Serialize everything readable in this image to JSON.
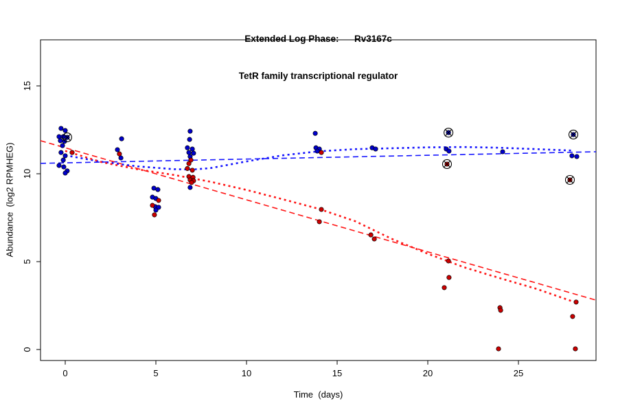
{
  "figure": {
    "title_line1": "Extended Log Phase:      Rv3167c",
    "title_line2": "TetR family transcriptional regulator",
    "xlabel": "Time  (days)",
    "ylabel": "Abundance  (log2 RPMHEG)"
  },
  "chart_data": {
    "type": "scatter",
    "title": "Extended Log Phase: Rv3167c — TetR family transcriptional regulator",
    "xlabel": "Time (days)",
    "ylabel": "Abundance (log2 RPMHEG)",
    "xlim": [
      -1.364,
      29.28
    ],
    "ylim": [
      -0.625,
      17.62
    ],
    "x_ticks": [
      0,
      5,
      10,
      15,
      20,
      25
    ],
    "y_ticks": [
      0,
      5,
      10,
      15
    ],
    "grid": false,
    "legend": "none",
    "colors": {
      "blue_point": "#0000CC",
      "red_point": "#CC0000",
      "blue_line": "#1414FF",
      "red_line": "#FF1414",
      "marker_outline": "#000000"
    },
    "series": [
      {
        "name": "blue_replicates",
        "color": "#0000CC",
        "points": [
          [
            -0.23,
            12.58
          ],
          [
            0.0,
            12.46
          ],
          [
            -0.34,
            12.11
          ],
          [
            -0.11,
            12.11
          ],
          [
            0.11,
            12.07
          ],
          [
            -0.27,
            11.88
          ],
          [
            -0.04,
            11.84
          ],
          [
            -0.15,
            11.6
          ],
          [
            -0.23,
            11.21
          ],
          [
            0.0,
            11.02
          ],
          [
            -0.11,
            10.78
          ],
          [
            -0.34,
            10.47
          ],
          [
            -0.08,
            10.39
          ],
          [
            0.11,
            10.16
          ],
          [
            0.0,
            10.04
          ],
          [
            3.11,
            11.99
          ],
          [
            2.88,
            11.37
          ],
          [
            3.07,
            10.9
          ],
          [
            4.89,
            9.18
          ],
          [
            5.11,
            9.1
          ],
          [
            4.81,
            8.67
          ],
          [
            5.0,
            8.59
          ],
          [
            4.96,
            8.13
          ],
          [
            5.15,
            8.09
          ],
          [
            5.0,
            7.93
          ],
          [
            6.89,
            12.42
          ],
          [
            6.86,
            11.95
          ],
          [
            6.74,
            11.48
          ],
          [
            7.01,
            11.41
          ],
          [
            6.82,
            11.21
          ],
          [
            7.08,
            11.17
          ],
          [
            6.89,
            10.98
          ],
          [
            6.89,
            9.22
          ],
          [
            13.79,
            12.3
          ],
          [
            13.83,
            11.48
          ],
          [
            14.02,
            11.41
          ],
          [
            13.9,
            11.29
          ],
          [
            16.93,
            11.48
          ],
          [
            17.12,
            11.41
          ],
          [
            21.14,
            12.34
          ],
          [
            21.02,
            11.41
          ],
          [
            21.17,
            11.29
          ],
          [
            24.13,
            11.25
          ],
          [
            28.03,
            12.23
          ],
          [
            27.95,
            11.02
          ],
          [
            28.22,
            10.98
          ]
        ]
      },
      {
        "name": "red_replicates",
        "color": "#CC0000",
        "points": [
          [
            0.38,
            11.21
          ],
          [
            2.99,
            11.13
          ],
          [
            5.15,
            8.48
          ],
          [
            4.81,
            8.2
          ],
          [
            4.92,
            7.66
          ],
          [
            6.93,
            10.78
          ],
          [
            6.82,
            10.58
          ],
          [
            6.74,
            10.3
          ],
          [
            7.01,
            10.2
          ],
          [
            6.82,
            9.84
          ],
          [
            7.05,
            9.8
          ],
          [
            6.89,
            9.65
          ],
          [
            7.08,
            9.6
          ],
          [
            6.97,
            9.5
          ],
          [
            14.13,
            11.21
          ],
          [
            14.13,
            7.97
          ],
          [
            14.02,
            7.27
          ],
          [
            16.86,
            6.52
          ],
          [
            17.05,
            6.29
          ],
          [
            21.06,
            10.55
          ],
          [
            21.14,
            5.04
          ],
          [
            21.17,
            4.1
          ],
          [
            20.91,
            3.52
          ],
          [
            23.98,
            2.38
          ],
          [
            24.02,
            2.23
          ],
          [
            23.9,
            0.04
          ],
          [
            27.84,
            9.65
          ],
          [
            28.18,
            2.7
          ],
          [
            27.99,
            1.88
          ],
          [
            28.14,
            0.04
          ]
        ]
      }
    ],
    "flagged_points": [
      {
        "series": "blue_replicates",
        "x": 0.11,
        "y": 12.07
      },
      {
        "series": "blue_replicates",
        "x": 21.14,
        "y": 12.34
      },
      {
        "series": "blue_replicates",
        "x": 28.03,
        "y": 12.23
      },
      {
        "series": "red_replicates",
        "x": 21.06,
        "y": 10.55
      },
      {
        "series": "red_replicates",
        "x": 27.84,
        "y": 9.65
      }
    ],
    "fit_lines": [
      {
        "name": "blue_linear_fit",
        "style": "dashed",
        "color": "#1414FF",
        "width": 1.6,
        "points": [
          [
            -1.364,
            10.59
          ],
          [
            29.28,
            11.25
          ]
        ]
      },
      {
        "name": "red_linear_fit",
        "style": "dashed",
        "color": "#FF1414",
        "width": 1.6,
        "points": [
          [
            -1.364,
            11.88
          ],
          [
            29.28,
            2.81
          ]
        ]
      },
      {
        "name": "blue_smooth_fit",
        "style": "dotted",
        "color": "#1414FF",
        "width": 2.6,
        "points": [
          [
            0,
            11.05
          ],
          [
            2,
            10.68
          ],
          [
            4,
            10.42
          ],
          [
            6,
            10.26
          ],
          [
            7,
            10.24
          ],
          [
            8,
            10.32
          ],
          [
            10,
            10.7
          ],
          [
            12,
            11.05
          ],
          [
            14,
            11.28
          ],
          [
            16,
            11.4
          ],
          [
            18,
            11.45
          ],
          [
            20,
            11.5
          ],
          [
            22,
            11.52
          ],
          [
            24,
            11.48
          ],
          [
            26,
            11.4
          ],
          [
            28,
            11.32
          ]
        ]
      },
      {
        "name": "red_smooth_fit",
        "style": "dotted",
        "color": "#FF1414",
        "width": 2.6,
        "points": [
          [
            0,
            11.3
          ],
          [
            2,
            10.66
          ],
          [
            4,
            10.25
          ],
          [
            6,
            9.93
          ],
          [
            8,
            9.55
          ],
          [
            10,
            9.08
          ],
          [
            12,
            8.55
          ],
          [
            14,
            8.0
          ],
          [
            16,
            7.3
          ],
          [
            18,
            6.3
          ],
          [
            20,
            5.45
          ],
          [
            22,
            4.68
          ],
          [
            24,
            4.05
          ],
          [
            26,
            3.45
          ],
          [
            28,
            2.73
          ]
        ]
      }
    ]
  }
}
